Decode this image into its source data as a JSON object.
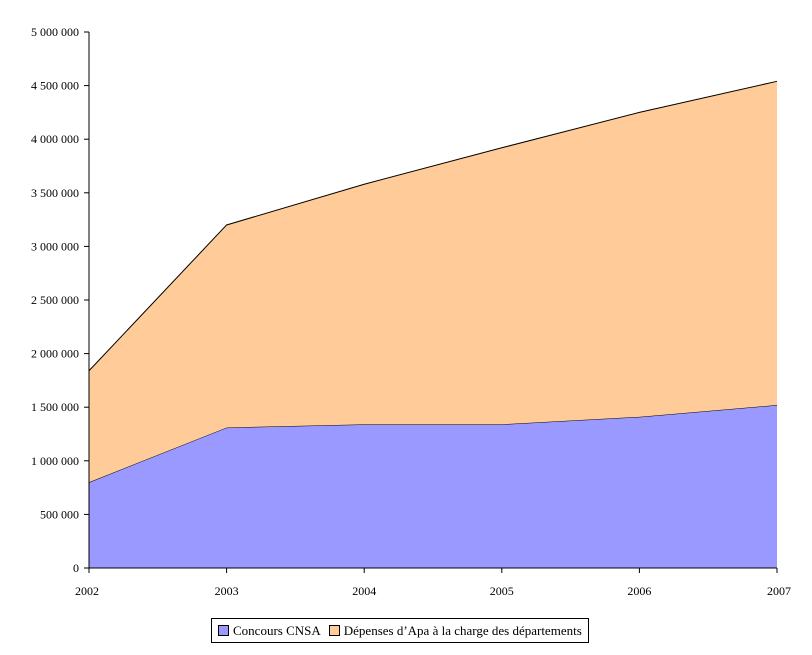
{
  "chart_data": {
    "type": "area",
    "stacked": true,
    "title": "",
    "xlabel": "",
    "ylabel": "",
    "x": [
      "2002",
      "2003",
      "2004",
      "2005",
      "2006",
      "2007"
    ],
    "ylim": [
      0,
      5000000
    ],
    "yticks": [
      0,
      500000,
      1000000,
      1500000,
      2000000,
      2500000,
      3000000,
      3500000,
      4000000,
      4500000,
      5000000
    ],
    "ytick_labels": [
      "0",
      "500 000",
      "1 000 000",
      "1 500 000",
      "2 000 000",
      "2 500 000",
      "3 000 000",
      "3 500 000",
      "4 000 000",
      "4 500 000",
      "5 000 000"
    ],
    "series": [
      {
        "name": "Concours CNSA",
        "color": "#9999ff",
        "values": [
          800000,
          1310000,
          1340000,
          1340000,
          1410000,
          1520000
        ]
      },
      {
        "name": "Dépenses d’Apa à la charge des départements",
        "color": "#ffcc99",
        "values": [
          1040000,
          1890000,
          2240000,
          2580000,
          2840000,
          3020000
        ]
      }
    ],
    "grid": false,
    "legend_position": "bottom"
  }
}
